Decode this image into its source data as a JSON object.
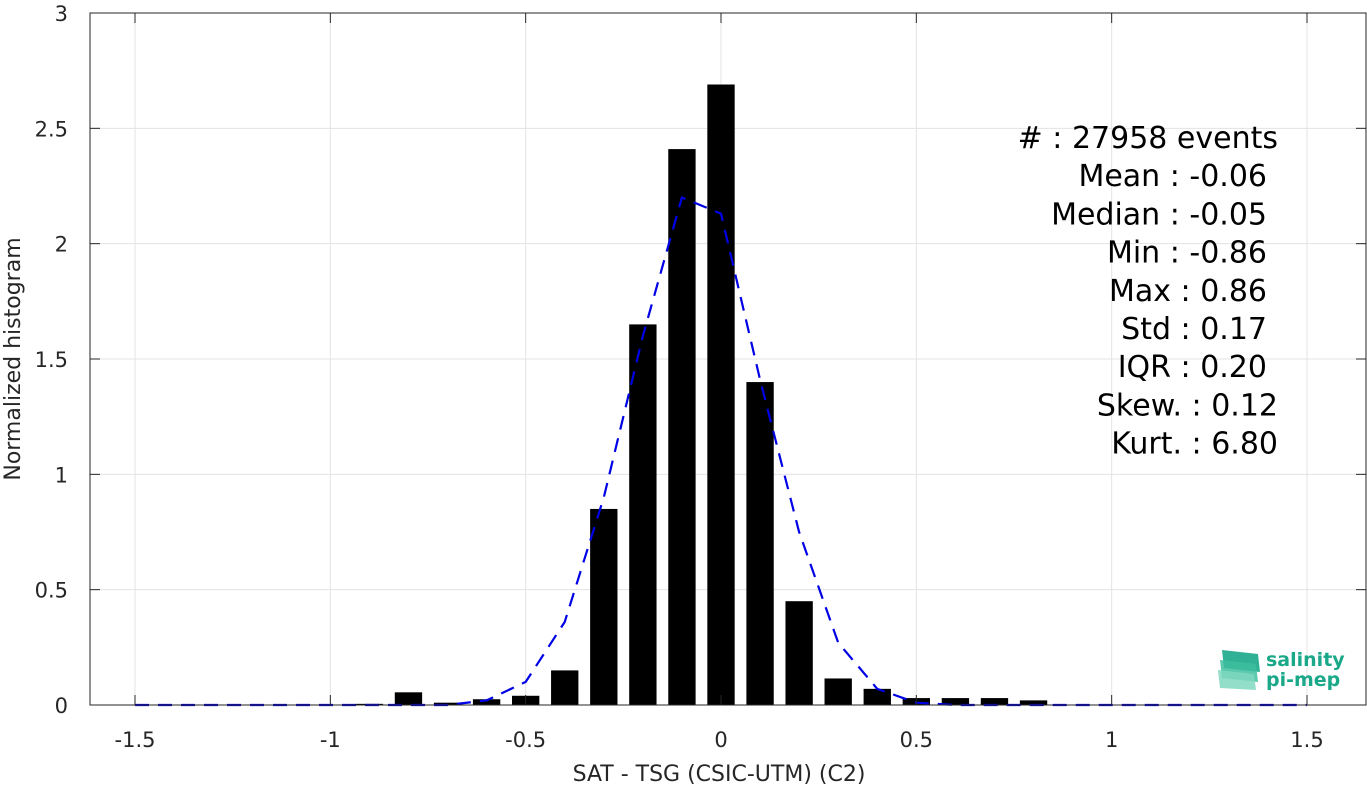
{
  "chart_data": {
    "type": "bar",
    "xlabel": "SAT - TSG (CSIC-UTM) (C2)",
    "ylabel": "Normalized histogram",
    "xlim": [
      -1.5,
      1.5
    ],
    "ylim": [
      0,
      3
    ],
    "grid": true,
    "x_ticks": [
      -1.5,
      -1,
      -0.5,
      0,
      0.5,
      1,
      1.5
    ],
    "x_tick_labels": [
      "-1.5",
      "-1",
      "-0.5",
      "0",
      "0.5",
      "1",
      "1.5"
    ],
    "y_ticks": [
      0,
      0.5,
      1,
      1.5,
      2,
      2.5,
      3
    ],
    "y_tick_labels": [
      "0",
      "0.5",
      "1",
      "1.5",
      "2",
      "2.5",
      "3"
    ],
    "bar_width": 0.07,
    "histogram": {
      "x": [
        -0.9,
        -0.8,
        -0.7,
        -0.6,
        -0.5,
        -0.4,
        -0.3,
        -0.2,
        -0.1,
        0.0,
        0.1,
        0.2,
        0.3,
        0.4,
        0.5,
        0.6,
        0.7,
        0.8
      ],
      "values": [
        0.005,
        0.055,
        0.01,
        0.025,
        0.04,
        0.15,
        0.85,
        1.65,
        2.41,
        2.69,
        1.4,
        0.45,
        0.115,
        0.07,
        0.03,
        0.03,
        0.03,
        0.02
      ],
      "color": "#000000"
    },
    "fit_curve": {
      "style": "dashed",
      "color": "#0000e6",
      "x": [
        -1.5,
        -1.4,
        -1.3,
        -1.2,
        -1.1,
        -1.0,
        -0.9,
        -0.8,
        -0.7,
        -0.6,
        -0.5,
        -0.4,
        -0.3,
        -0.2,
        -0.1,
        0.0,
        0.1,
        0.2,
        0.3,
        0.4,
        0.5,
        0.6,
        0.7,
        0.8,
        0.9,
        1.0,
        1.1,
        1.2,
        1.3,
        1.4,
        1.5
      ],
      "values": [
        0,
        0,
        0,
        0,
        0,
        0,
        0,
        0,
        0,
        0.02,
        0.1,
        0.36,
        0.9,
        1.6,
        2.2,
        2.13,
        1.41,
        0.75,
        0.27,
        0.07,
        0.01,
        0,
        0,
        0,
        0,
        0,
        0,
        0,
        0,
        0,
        0
      ]
    },
    "stats": [
      "#  : 27958 events",
      "Mean : -0.06",
      "Median : -0.05",
      "Min : -0.86",
      "Max : 0.86",
      "Std : 0.17",
      "IQR : 0.20",
      "Skew. : 0.12",
      "Kurt. : 6.80"
    ]
  },
  "logo": {
    "line1": "salinity",
    "line2": "pi-mep",
    "color": "#1aa889"
  }
}
